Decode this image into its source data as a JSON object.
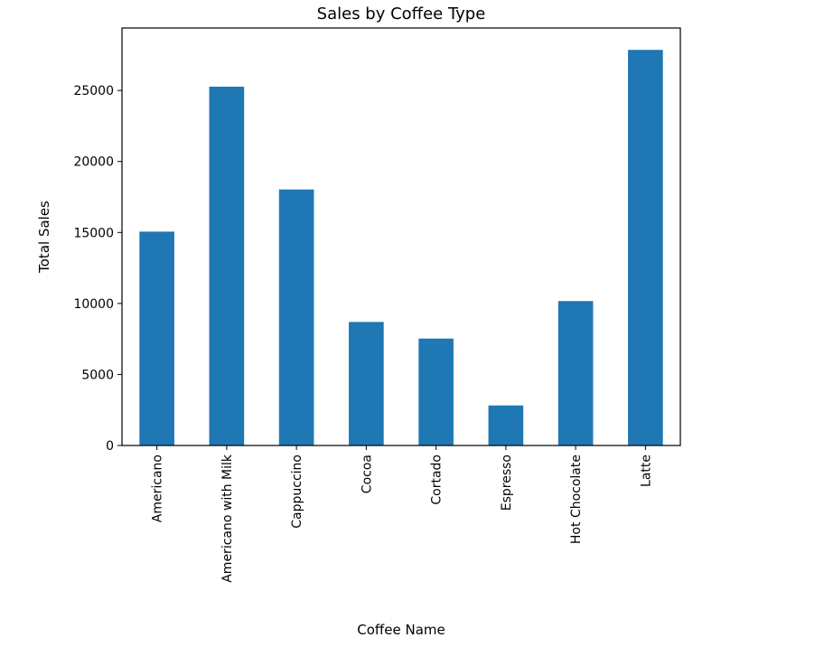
{
  "chart_data": {
    "type": "bar",
    "title": "Sales by Coffee Type",
    "xlabel": "Coffee Name",
    "ylabel": "Total Sales",
    "categories": [
      "Americano",
      "Americano with Milk",
      "Cappuccino",
      "Cocoa",
      "Cortado",
      "Espresso",
      "Hot Chocolate",
      "Latte"
    ],
    "values": [
      15060,
      25270,
      18030,
      8700,
      7530,
      2820,
      10170,
      27860
    ],
    "ylim": [
      0,
      29400
    ],
    "yticks": [
      0,
      5000,
      10000,
      15000,
      20000,
      25000
    ],
    "grid": false,
    "legend": "none",
    "bar_color": "#1f77b4"
  }
}
